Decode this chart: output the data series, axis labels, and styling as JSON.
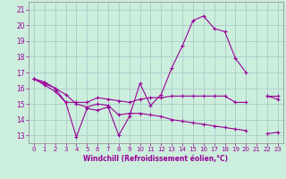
{
  "xlabel": "Windchill (Refroidissement éolien,°C)",
  "background_color": "#cceedd",
  "grid_color": "#aacccc",
  "line_color": "#990099",
  "x": [
    0,
    1,
    2,
    3,
    4,
    5,
    6,
    7,
    8,
    9,
    10,
    11,
    12,
    13,
    14,
    15,
    16,
    17,
    18,
    19,
    20,
    21,
    22,
    23
  ],
  "line1": [
    16.6,
    16.4,
    16.0,
    15.1,
    12.9,
    14.7,
    14.6,
    14.8,
    13.0,
    14.2,
    16.3,
    14.9,
    15.6,
    17.3,
    18.7,
    20.3,
    20.6,
    19.8,
    19.6,
    17.9,
    17.0,
    null,
    15.5,
    15.3
  ],
  "line2": [
    16.6,
    16.2,
    15.8,
    15.1,
    15.1,
    15.1,
    15.4,
    15.3,
    15.2,
    15.1,
    15.3,
    15.4,
    15.4,
    15.5,
    15.5,
    15.5,
    15.5,
    15.5,
    15.5,
    15.1,
    15.1,
    null,
    15.5,
    15.5
  ],
  "line3": [
    16.6,
    16.3,
    16.0,
    15.6,
    15.0,
    14.8,
    15.0,
    14.9,
    14.3,
    14.4,
    14.4,
    14.3,
    14.2,
    14.0,
    13.9,
    13.8,
    13.7,
    13.6,
    13.5,
    13.4,
    13.3,
    null,
    13.1,
    13.2
  ],
  "ylim": [
    12.5,
    21.5
  ],
  "xlim": [
    -0.5,
    23.5
  ],
  "yticks": [
    13,
    14,
    15,
    16,
    17,
    18,
    19,
    20,
    21
  ],
  "xticks": [
    0,
    1,
    2,
    3,
    4,
    5,
    6,
    7,
    8,
    9,
    10,
    11,
    12,
    13,
    14,
    15,
    16,
    17,
    18,
    19,
    20,
    21,
    22,
    23
  ]
}
